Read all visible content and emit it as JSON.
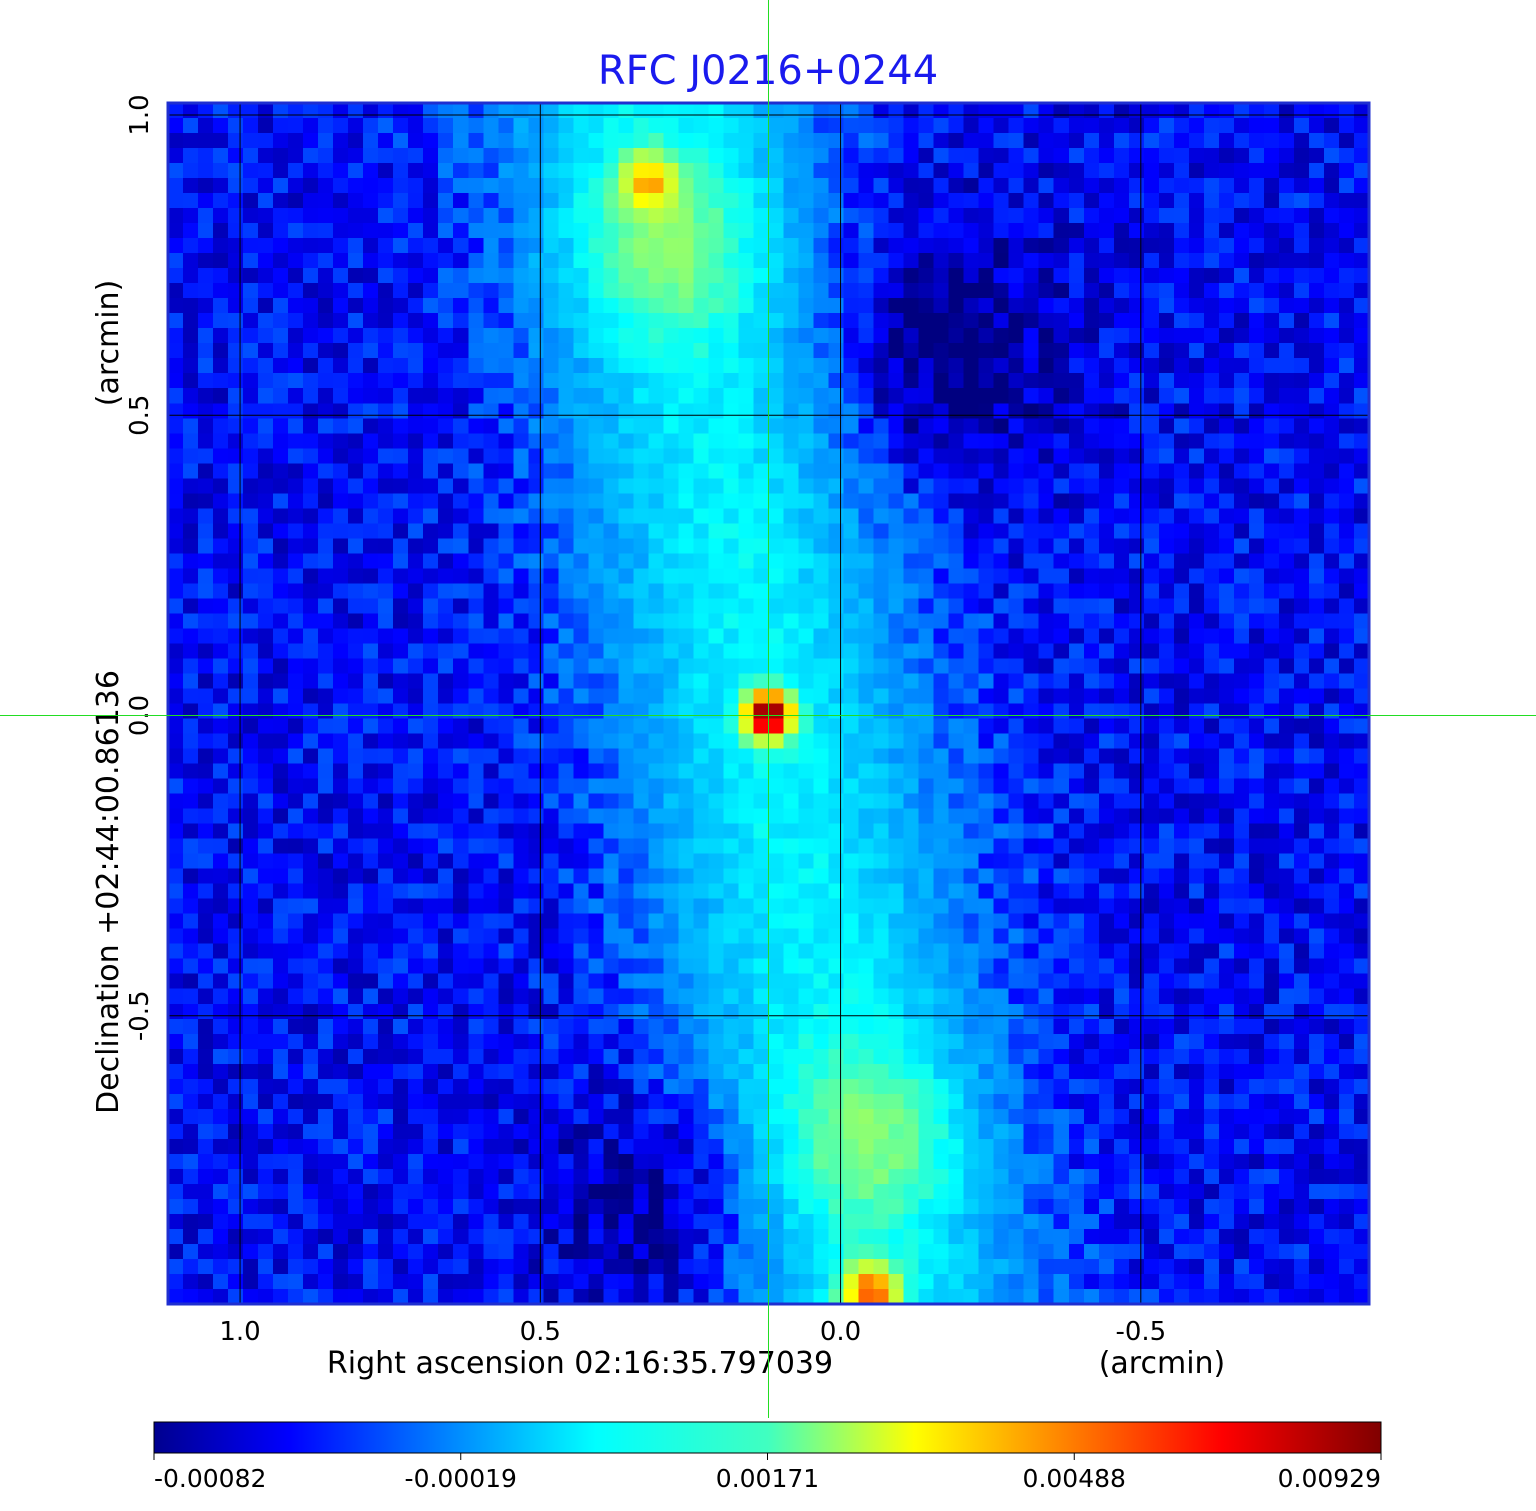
{
  "chart_data": {
    "type": "heatmap",
    "title": "RFC J0216+0244",
    "xlabel": "Right ascension  02:16:35.797039",
    "xunit": "(arcmin)",
    "ylabel": "Declination  +02:44:00.86136",
    "yunit": "(arcmin)",
    "x_ticks": [
      "1.0",
      "0.5",
      "0.0",
      "-0.5"
    ],
    "y_ticks": [
      "1.0",
      "0.5",
      "0.0",
      "-0.5"
    ],
    "x_tick_values": [
      1.0,
      0.5,
      0.0,
      -0.5
    ],
    "y_tick_values": [
      1.0,
      0.5,
      0.0,
      -0.5
    ],
    "xlim": [
      1.12,
      -0.88
    ],
    "ylim": [
      -0.98,
      1.02
    ],
    "grid": true,
    "crosshair": {
      "x": 0.12,
      "y": 0.0,
      "color": "#22dd22"
    },
    "colormap": "jet",
    "colorbar": {
      "min": -0.00082,
      "max": 0.00929,
      "tick_labels": [
        "-0.00082",
        "-0.00019",
        "0.00171",
        "0.00488",
        "0.00929"
      ],
      "tick_values": [
        -0.00082,
        -0.00019,
        0.00171,
        0.00488,
        0.00929
      ]
    },
    "features": [
      {
        "name": "central core",
        "x": 0.12,
        "y": 0.0,
        "peak": 0.00929
      },
      {
        "name": "northern hotspot",
        "x": 0.32,
        "y": 0.89,
        "peak": 0.0032
      },
      {
        "name": "southern hotspot",
        "x": -0.05,
        "y": -0.96,
        "peak": 0.005
      }
    ]
  }
}
